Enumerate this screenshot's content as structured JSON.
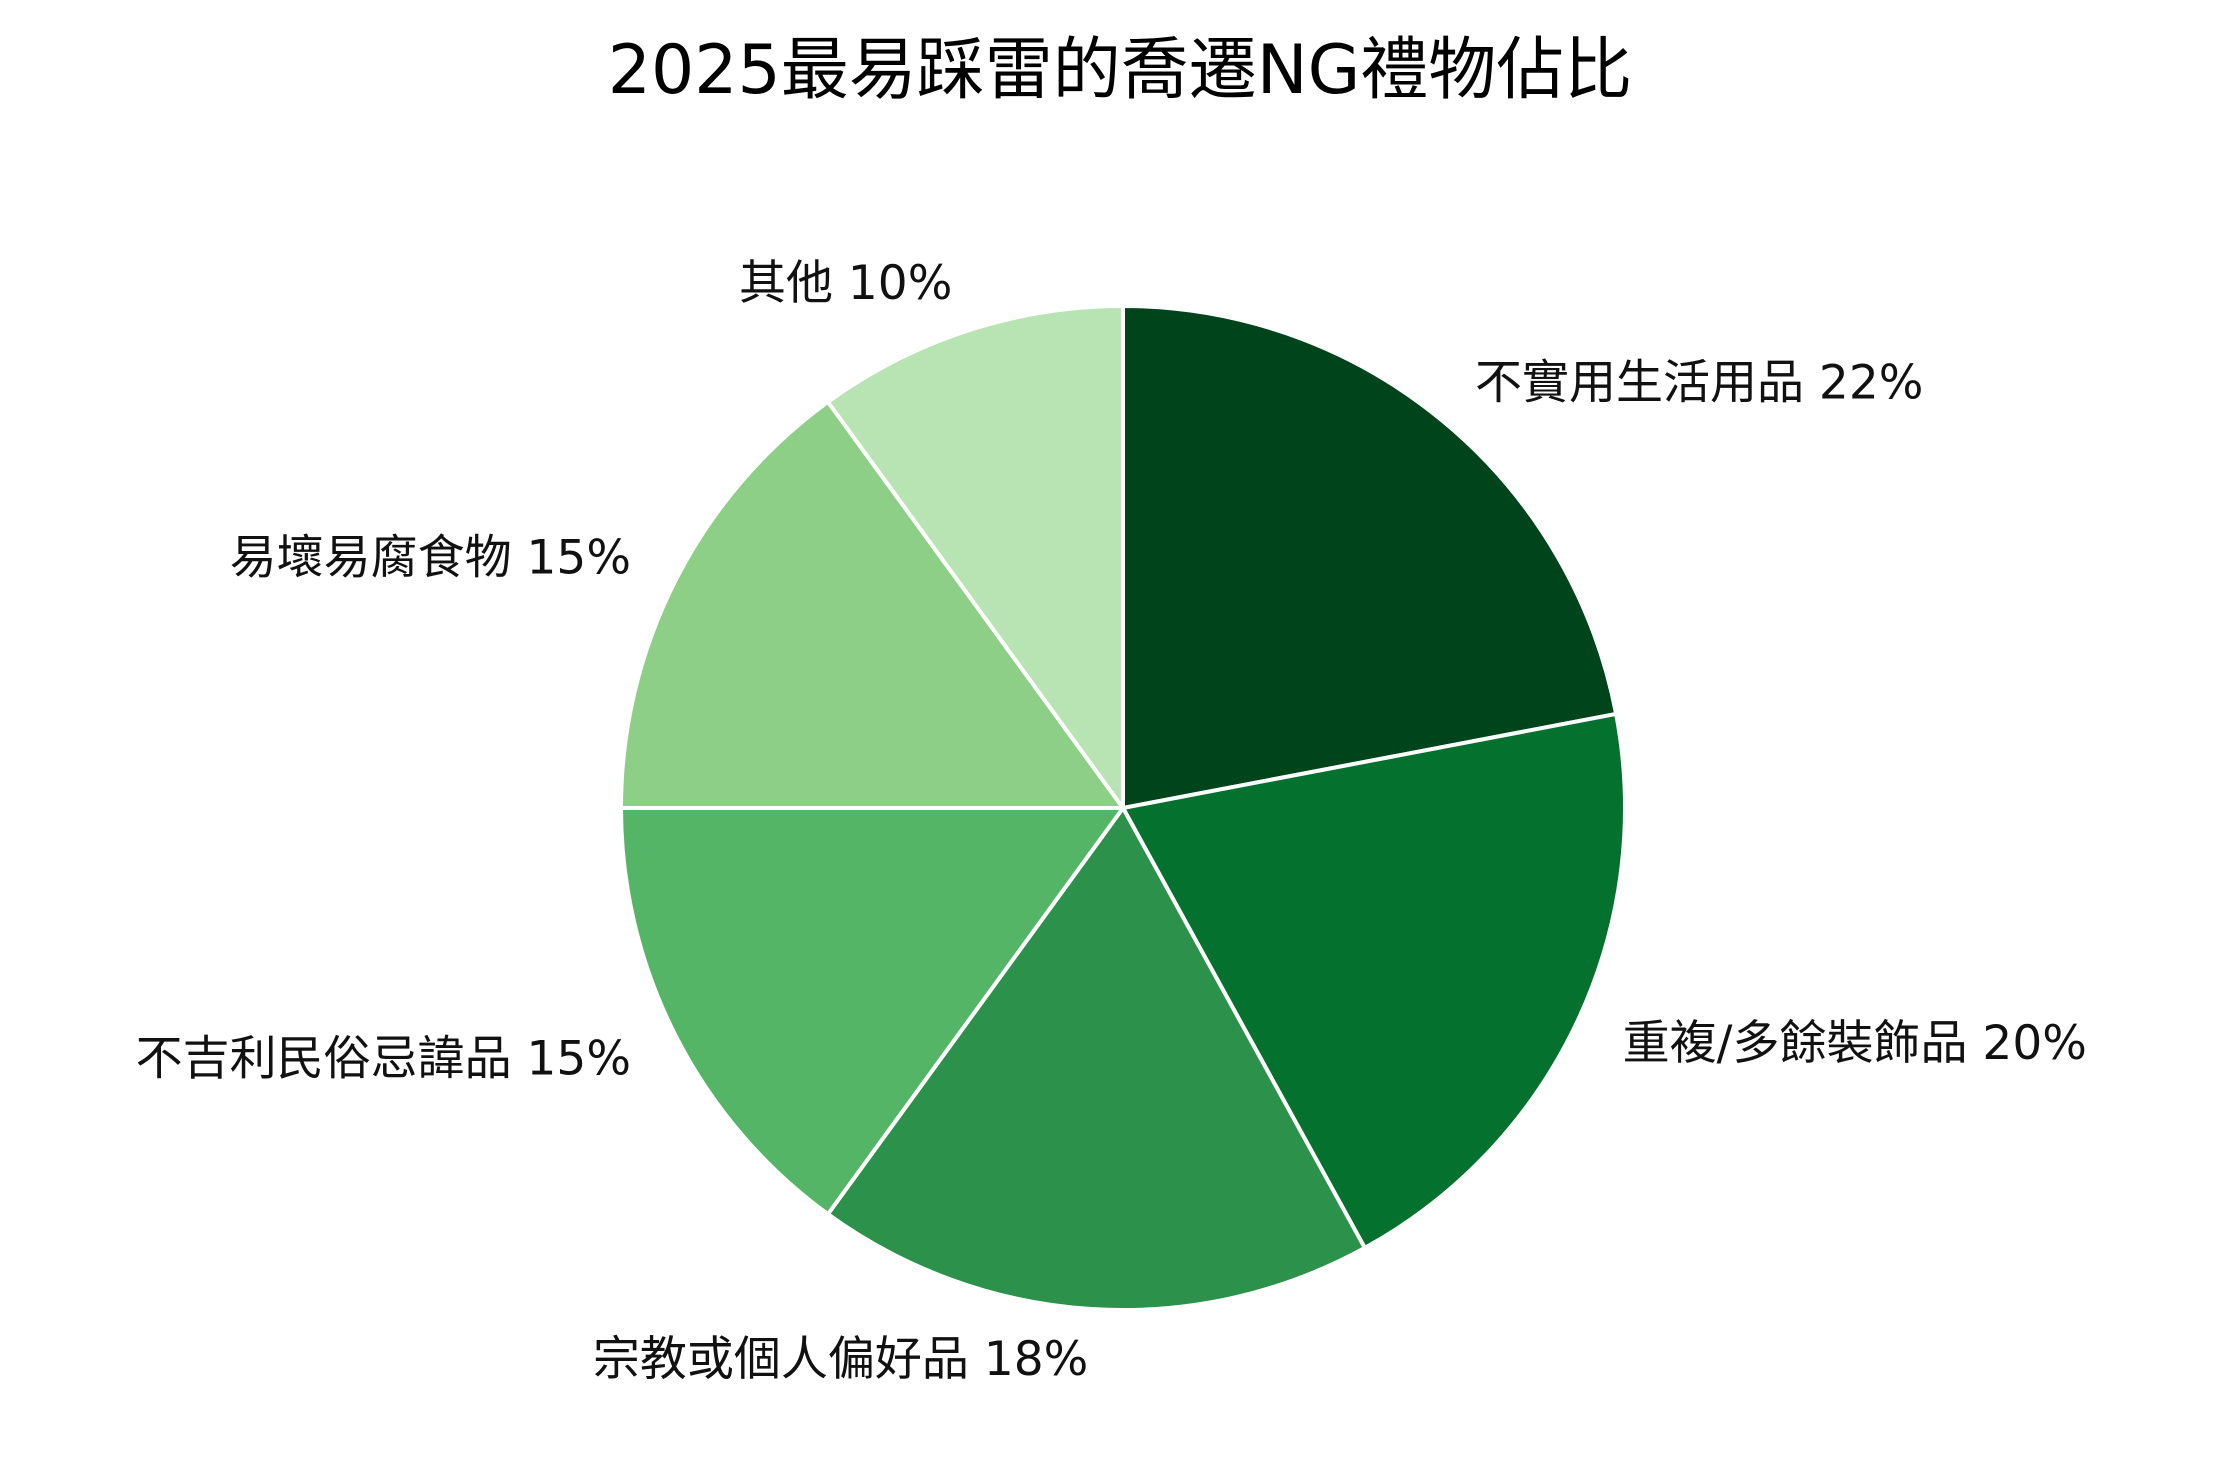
{
  "chart_data": {
    "type": "pie",
    "title": "2025最易踩雷的喬遷NG禮物佔比",
    "start_angle": "top, clockwise",
    "slices": [
      {
        "label": "不實用生活用品",
        "value": 22,
        "text": "不實用生活用品 22%",
        "color": "#00441b"
      },
      {
        "label": "重複/多餘裝飾品",
        "value": 20,
        "text": "重複/多餘裝飾品 20%",
        "color": "#05712f"
      },
      {
        "label": "宗教或個人偏好品",
        "value": 18,
        "text": "宗教或個人偏好品 18%",
        "color": "#2c914b"
      },
      {
        "label": "不吉利民俗忌諱品",
        "value": 15,
        "text": "不吉利民俗忌諱品 15%",
        "color": "#55b567"
      },
      {
        "label": "易壞易腐食物",
        "value": 15,
        "text": "易壞易腐食物 15%",
        "color": "#8ecf88"
      },
      {
        "label": "其他",
        "value": 10,
        "text": "其他 10%",
        "color": "#b8e3b2"
      }
    ],
    "edge_color": "#ffffff"
  }
}
